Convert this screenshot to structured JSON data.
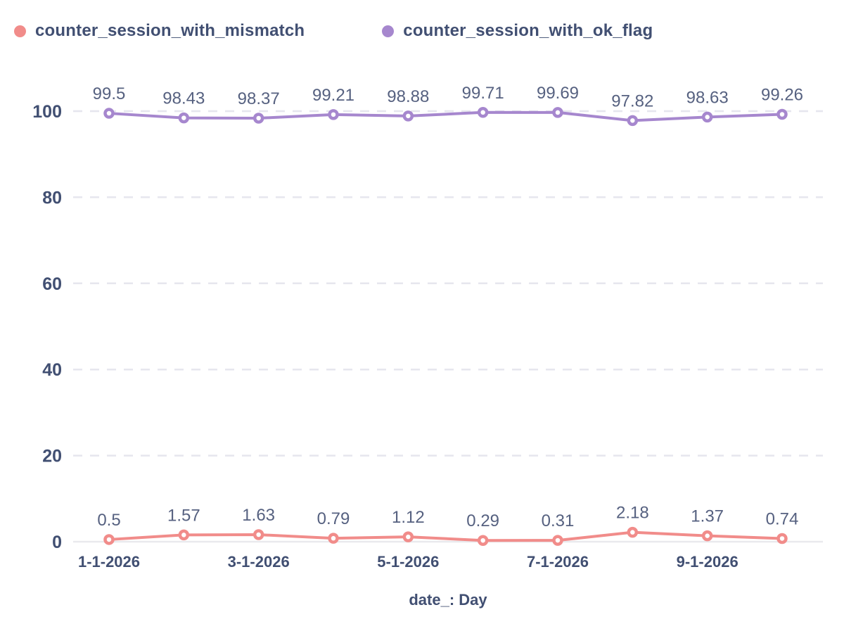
{
  "chart_data": {
    "type": "line",
    "title": "",
    "xlabel": "date_: Day",
    "ylabel": "",
    "ylim": [
      0,
      100
    ],
    "y_ticks": [
      0,
      20,
      40,
      60,
      80,
      100
    ],
    "grid": "horizontal-dashed",
    "legend_position": "top-left",
    "num_points": 10,
    "x_tick_indices": [
      0,
      2,
      4,
      6,
      8
    ],
    "x_tick_labels": [
      "1-1-2026",
      "3-1-2026",
      "5-1-2026",
      "7-1-2026",
      "9-1-2026"
    ],
    "series": [
      {
        "name": "counter_session_with_mismatch",
        "color": "#f18c8a",
        "marker": "open-circle",
        "values": [
          0.5,
          1.57,
          1.63,
          0.79,
          1.12,
          0.29,
          0.31,
          2.18,
          1.37,
          0.74
        ]
      },
      {
        "name": "counter_session_with_ok_flag",
        "color": "#a687ce",
        "marker": "open-circle",
        "values": [
          99.5,
          98.43,
          98.37,
          99.21,
          98.88,
          99.71,
          99.69,
          97.82,
          98.63,
          99.26
        ]
      }
    ]
  },
  "legend": {
    "items": [
      {
        "label": "counter_session_with_mismatch",
        "color": "#f18c8a"
      },
      {
        "label": "counter_session_with_ok_flag",
        "color": "#a687ce"
      }
    ]
  },
  "colors": {
    "axis_text": "#414f72",
    "value_label_text": "#566180",
    "gridline": "#e6e6ee",
    "zero_line": "#e9e9ed",
    "background": "#ffffff"
  }
}
